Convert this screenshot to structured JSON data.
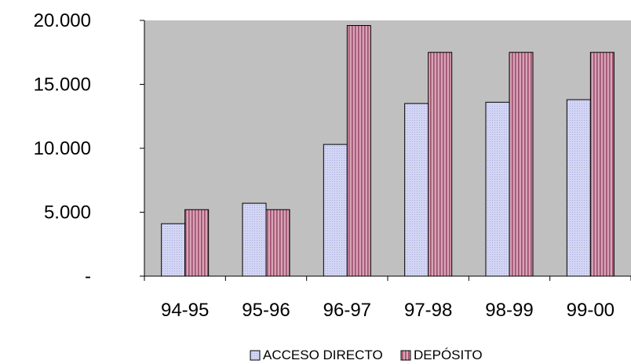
{
  "chart_data": {
    "type": "bar",
    "categories": [
      "94-95",
      "95-96",
      "96-97",
      "97-98",
      "98-99",
      "99-00"
    ],
    "series": [
      {
        "name": "ACCESO DIRECTO",
        "values": [
          4100,
          5700,
          10300,
          13500,
          13600,
          13800
        ],
        "color": "#c9cbf0"
      },
      {
        "name": "DEPÓSITO",
        "values": [
          5200,
          5200,
          19600,
          17500,
          17500,
          17500
        ],
        "color": "#c98fa6"
      }
    ],
    "ylim": [
      0,
      20000
    ],
    "y_ticks": [
      {
        "value": 0,
        "label": "-"
      },
      {
        "value": 5000,
        "label": "5.000"
      },
      {
        "value": 10000,
        "label": "10.000"
      },
      {
        "value": 15000,
        "label": "15.000"
      },
      {
        "value": 20000,
        "label": "20.000"
      }
    ],
    "plot_background": "#c0c0c0",
    "grid": false,
    "legend_position": "bottom",
    "title": "",
    "xlabel": "",
    "ylabel": ""
  }
}
